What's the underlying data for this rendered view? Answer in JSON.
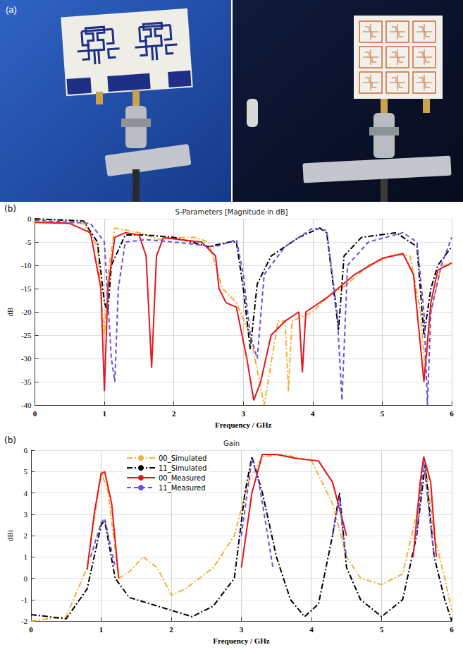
{
  "panel_a": {
    "label": "(a)"
  },
  "chart_data": [
    {
      "type": "line",
      "panel_label": "(b)",
      "title": "S-Parameters [Magnitude in dB]",
      "x_label": "Frequency / GHz",
      "y_label": "dB",
      "xlim": [
        0,
        6
      ],
      "xticks": [
        0,
        1,
        2,
        3,
        4,
        5,
        6
      ],
      "ylim": [
        -40,
        0
      ],
      "yticks": [
        -40,
        -35,
        -30,
        -25,
        -20,
        -15,
        -10,
        -5,
        0
      ],
      "grid": true,
      "series": [
        {
          "color": "#f2b134",
          "line_style": "dashdot",
          "marker": "none",
          "x": [
            0,
            0.7,
            0.9,
            0.97,
            1.0,
            1.05,
            1.15,
            1.5,
            1.8,
            2.1,
            2.3,
            2.5,
            2.7,
            2.9,
            3.1,
            3.3,
            3.5,
            3.6,
            3.65,
            3.7,
            4.0,
            4.2,
            4.5,
            4.8,
            5.2,
            5.4,
            5.55,
            5.62,
            5.7,
            5.85,
            6.0
          ],
          "values": [
            -0.5,
            -1,
            -6,
            -20,
            -25,
            -12,
            -2,
            -3,
            -4.5,
            -4,
            -4,
            -5,
            -15,
            -18,
            -25,
            -40,
            -22,
            -22,
            -37,
            -22,
            -20,
            -17,
            -14,
            -10,
            -7.5,
            -8,
            -20,
            -33,
            -20,
            -10,
            -10
          ]
        },
        {
          "color": "#000000",
          "line_style": "dashdot",
          "marker": "none",
          "x": [
            0,
            0.7,
            0.9,
            1.0,
            1.05,
            1.1,
            1.3,
            1.6,
            2.0,
            2.5,
            2.8,
            2.9,
            3.0,
            3.1,
            3.2,
            3.4,
            3.8,
            4.1,
            4.2,
            4.3,
            4.37,
            4.45,
            4.7,
            5.2,
            5.5,
            5.6,
            5.7,
            5.8,
            6.0
          ],
          "values": [
            0,
            -0.5,
            -5,
            -18,
            -20,
            -10,
            -3.5,
            -3.5,
            -4,
            -6,
            -5,
            -5,
            -15,
            -28,
            -14,
            -8,
            -4,
            -2,
            -3,
            -15,
            -24,
            -8,
            -4,
            -3,
            -6,
            -25,
            -15,
            -10,
            -6
          ]
        },
        {
          "color": "#e8141c",
          "line_style": "solid",
          "marker": "none",
          "x": [
            0,
            0.5,
            0.8,
            0.95,
            1.0,
            1.05,
            1.15,
            1.3,
            1.5,
            1.6,
            1.68,
            1.75,
            1.85,
            2.1,
            2.4,
            2.6,
            2.65,
            2.75,
            2.9,
            3.05,
            3.15,
            3.25,
            3.4,
            3.6,
            3.8,
            3.85,
            3.9,
            4.2,
            4.6,
            5.0,
            5.3,
            5.45,
            5.6,
            5.7,
            5.8,
            6.0
          ],
          "values": [
            -0.8,
            -1,
            -3,
            -15,
            -37,
            -15,
            -4,
            -3,
            -3.5,
            -8,
            -32,
            -8,
            -4,
            -4.5,
            -5,
            -8,
            -15,
            -18,
            -19,
            -30,
            -39,
            -35,
            -25,
            -22,
            -20,
            -33,
            -20,
            -17,
            -12,
            -8.5,
            -7.5,
            -12,
            -35,
            -18,
            -11,
            -9.5
          ]
        },
        {
          "color": "#6b4fe0",
          "line_style": "dashed",
          "marker": "none",
          "x": [
            0,
            0.8,
            1.0,
            1.1,
            1.15,
            1.2,
            1.3,
            1.6,
            2.0,
            2.3,
            2.6,
            2.9,
            3.0,
            3.1,
            3.2,
            3.3,
            3.6,
            4.0,
            4.2,
            4.35,
            4.42,
            4.5,
            4.8,
            5.3,
            5.5,
            5.6,
            5.65,
            5.7,
            5.85,
            6.0
          ],
          "values": [
            -0.3,
            -1,
            -5,
            -30,
            -35,
            -15,
            -5,
            -4.5,
            -5,
            -5.5,
            -6,
            -4.5,
            -12,
            -25,
            -30,
            -12,
            -6,
            -2,
            -2.5,
            -20,
            -39,
            -10,
            -5,
            -3,
            -5,
            -20,
            -40,
            -20,
            -10,
            -4
          ]
        }
      ]
    },
    {
      "type": "line",
      "panel_label": "(b)",
      "title": "Gain",
      "x_label": "Frequency / GHz",
      "y_label": "dBi",
      "xlim": [
        0,
        6
      ],
      "xticks": [
        0,
        1,
        2,
        3,
        4,
        5,
        6
      ],
      "ylim": [
        -2,
        6
      ],
      "yticks": [
        -2,
        -1,
        0,
        1,
        2,
        3,
        4,
        5,
        6
      ],
      "grid": true,
      "legend": "upper left",
      "series": [
        {
          "name": "00_Simulated",
          "color": "#f2b134",
          "line_style": "dashdot",
          "marker": "none",
          "x": [
            0,
            0.5,
            0.8,
            1.0,
            1.1,
            1.25,
            1.4,
            1.6,
            1.8,
            2.0,
            2.2,
            2.6,
            2.9,
            3.1,
            3.3,
            3.6,
            4.0,
            4.3,
            4.5,
            4.7,
            5.0,
            5.3,
            5.5,
            5.62,
            5.75,
            5.9,
            6.0
          ],
          "values": [
            -2,
            -1.8,
            0.5,
            5,
            4,
            0,
            0.3,
            1,
            0.5,
            -0.8,
            -0.5,
            0.5,
            2,
            4.5,
            5.7,
            5.8,
            5.5,
            3.5,
            1,
            0,
            -0.3,
            0.2,
            3,
            5.5,
            2,
            0,
            -1.5
          ]
        },
        {
          "name": "11_Simulated",
          "color": "#000000",
          "line_style": "dashdot",
          "marker": "none",
          "x": [
            0,
            0.5,
            0.8,
            1.0,
            1.05,
            1.2,
            1.4,
            1.8,
            2.3,
            2.6,
            2.9,
            3.05,
            3.15,
            3.3,
            3.5,
            3.7,
            3.9,
            4.1,
            4.3,
            4.4,
            4.5,
            4.7,
            5.0,
            5.3,
            5.5,
            5.62,
            5.75,
            5.9,
            6.0
          ],
          "values": [
            -1.7,
            -1.9,
            -0.5,
            2.5,
            2.7,
            0,
            -0.9,
            -1.3,
            -1.8,
            -1.3,
            0,
            4,
            5.7,
            4,
            1,
            -1,
            -1.8,
            -1.2,
            2,
            4,
            0.5,
            -1,
            -1.8,
            -1,
            2,
            5.3,
            1,
            -1,
            -2
          ]
        },
        {
          "name": "00_Measured",
          "color": "#e8141c",
          "line_style": "solid",
          "marker": "none",
          "x": [
            0.8,
            0.9,
            1.0,
            1.05,
            1.15,
            1.25,
            2.0,
            3.0,
            3.15,
            3.3,
            3.5,
            3.8,
            4.1,
            4.3,
            4.5,
            5.0,
            5.45,
            5.55,
            5.6,
            5.7,
            5.78
          ],
          "values": [
            0.4,
            3,
            4.9,
            5,
            3.5,
            0,
            null,
            0.5,
            4,
            5.8,
            5.8,
            5.6,
            5.5,
            4.5,
            2,
            null,
            1,
            4.5,
            5.7,
            4.5,
            1
          ]
        },
        {
          "name": "11_Measured",
          "color": "#6b4fe0",
          "line_style": "dashed",
          "marker": "none",
          "x": [
            0.85,
            1.0,
            1.05,
            1.2,
            2.0,
            3.0,
            3.15,
            3.25,
            3.45,
            3.9,
            4.3,
            4.4,
            4.45,
            4.5,
            5.0,
            5.5,
            5.6,
            5.68,
            5.75
          ],
          "values": [
            1,
            2.6,
            2.8,
            0.5,
            null,
            2,
            5.6,
            4.5,
            0.5,
            null,
            2,
            3.8,
            2,
            1,
            null,
            2,
            5.5,
            3,
            1
          ]
        }
      ]
    }
  ]
}
